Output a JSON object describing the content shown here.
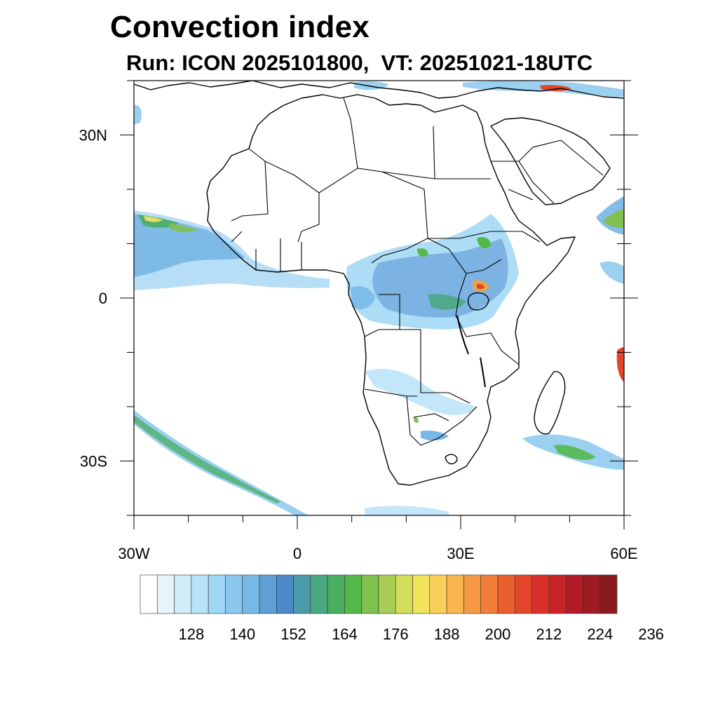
{
  "title": "Convection index",
  "subtitle": "Run: ICON 2025101800,  VT: 20251021-18UTC",
  "map": {
    "region": "Africa",
    "lon_range": [
      -30,
      60
    ],
    "lat_range": [
      -40,
      40
    ],
    "lon_labels": [
      {
        "lon": -30,
        "text": "30W"
      },
      {
        "lon": 0,
        "text": "0"
      },
      {
        "lon": 30,
        "text": "30E"
      },
      {
        "lon": 60,
        "text": "60E"
      }
    ],
    "lat_labels": [
      {
        "lat": 30,
        "text": "30N"
      },
      {
        "lat": 0,
        "text": "0"
      },
      {
        "lat": -30,
        "text": "30S"
      }
    ]
  },
  "colorbar": {
    "colors": [
      "#ffffff",
      "#e8f4fc",
      "#d0ebf9",
      "#b8e2f7",
      "#9fd7f4",
      "#8ac8ef",
      "#77b8e6",
      "#5e9fd6",
      "#4a88c8",
      "#4a9aa8",
      "#49a882",
      "#4aae60",
      "#55b84b",
      "#7fc04f",
      "#a8cd55",
      "#d2de5a",
      "#f1e45c",
      "#fbd05a",
      "#f8b550",
      "#f59a43",
      "#f07d38",
      "#ea5e2e",
      "#e34529",
      "#da3029",
      "#c92328",
      "#b31c25",
      "#9d1b22",
      "#891a1d"
    ],
    "tick_labels": [
      "128",
      "140",
      "152",
      "164",
      "176",
      "188",
      "200",
      "212",
      "224",
      "236"
    ]
  }
}
